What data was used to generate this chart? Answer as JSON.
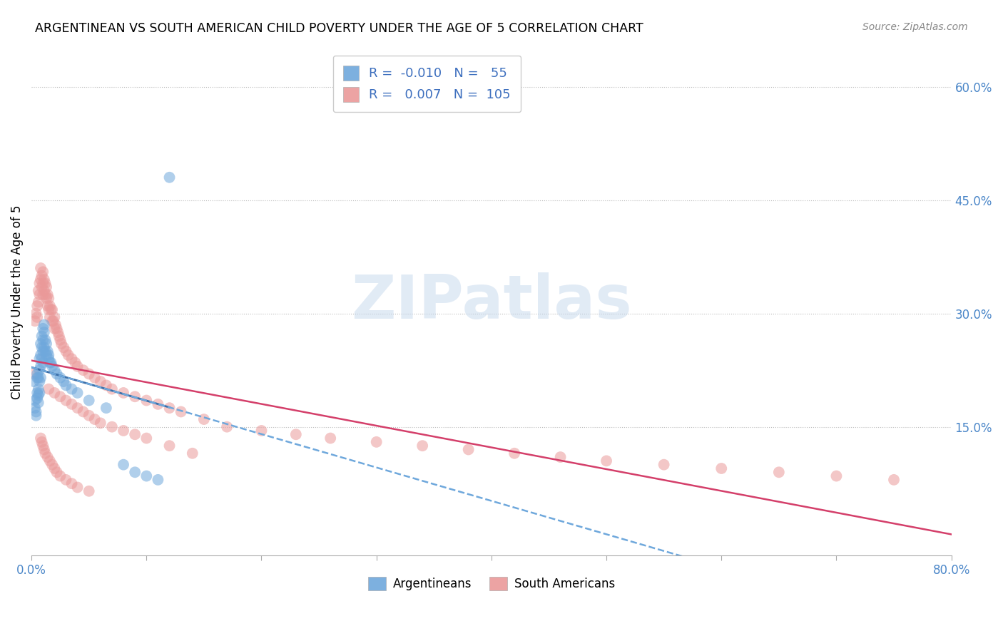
{
  "title": "ARGENTINEAN VS SOUTH AMERICAN CHILD POVERTY UNDER THE AGE OF 5 CORRELATION CHART",
  "source": "Source: ZipAtlas.com",
  "ylabel": "Child Poverty Under the Age of 5",
  "xlim": [
    0.0,
    0.8
  ],
  "ylim": [
    -0.02,
    0.65
  ],
  "yticks_right": [
    0.15,
    0.3,
    0.45,
    0.6
  ],
  "ytick_right_labels": [
    "15.0%",
    "30.0%",
    "45.0%",
    "60.0%"
  ],
  "legend_r1": "-0.010",
  "legend_n1": "55",
  "legend_r2": "0.007",
  "legend_n2": "105",
  "blue_color": "#6fa8dc",
  "pink_color": "#ea9999",
  "watermark": "ZIPatlas",
  "argentinean_x": [
    0.002,
    0.003,
    0.003,
    0.004,
    0.004,
    0.005,
    0.005,
    0.005,
    0.005,
    0.006,
    0.006,
    0.006,
    0.006,
    0.007,
    0.007,
    0.007,
    0.007,
    0.008,
    0.008,
    0.008,
    0.008,
    0.009,
    0.009,
    0.009,
    0.01,
    0.01,
    0.01,
    0.01,
    0.011,
    0.011,
    0.011,
    0.012,
    0.012,
    0.013,
    0.013,
    0.014,
    0.015,
    0.015,
    0.016,
    0.017,
    0.018,
    0.02,
    0.022,
    0.025,
    0.028,
    0.03,
    0.035,
    0.04,
    0.05,
    0.065,
    0.08,
    0.09,
    0.1,
    0.11,
    0.12
  ],
  "argentinean_y": [
    0.21,
    0.185,
    0.175,
    0.17,
    0.165,
    0.22,
    0.215,
    0.195,
    0.188,
    0.215,
    0.2,
    0.192,
    0.182,
    0.24,
    0.225,
    0.21,
    0.195,
    0.26,
    0.245,
    0.23,
    0.215,
    0.27,
    0.255,
    0.24,
    0.28,
    0.265,
    0.25,
    0.235,
    0.285,
    0.275,
    0.255,
    0.265,
    0.25,
    0.26,
    0.245,
    0.25,
    0.245,
    0.24,
    0.235,
    0.235,
    0.23,
    0.225,
    0.22,
    0.215,
    0.21,
    0.205,
    0.2,
    0.195,
    0.185,
    0.175,
    0.1,
    0.09,
    0.085,
    0.08,
    0.48
  ],
  "southamerican_x": [
    0.002,
    0.003,
    0.004,
    0.005,
    0.005,
    0.006,
    0.006,
    0.007,
    0.007,
    0.008,
    0.008,
    0.009,
    0.009,
    0.01,
    0.01,
    0.01,
    0.011,
    0.011,
    0.012,
    0.012,
    0.013,
    0.013,
    0.014,
    0.014,
    0.015,
    0.015,
    0.016,
    0.016,
    0.017,
    0.018,
    0.018,
    0.019,
    0.02,
    0.02,
    0.021,
    0.022,
    0.023,
    0.024,
    0.025,
    0.026,
    0.028,
    0.03,
    0.032,
    0.035,
    0.038,
    0.04,
    0.045,
    0.05,
    0.055,
    0.06,
    0.065,
    0.07,
    0.08,
    0.09,
    0.1,
    0.11,
    0.12,
    0.13,
    0.15,
    0.17,
    0.2,
    0.23,
    0.26,
    0.3,
    0.34,
    0.38,
    0.42,
    0.46,
    0.5,
    0.55,
    0.6,
    0.65,
    0.7,
    0.75,
    0.015,
    0.02,
    0.025,
    0.03,
    0.035,
    0.04,
    0.045,
    0.05,
    0.055,
    0.06,
    0.07,
    0.08,
    0.09,
    0.1,
    0.12,
    0.14,
    0.008,
    0.009,
    0.01,
    0.011,
    0.012,
    0.014,
    0.016,
    0.018,
    0.02,
    0.022,
    0.025,
    0.03,
    0.035,
    0.04,
    0.05
  ],
  "southamerican_y": [
    0.22,
    0.29,
    0.3,
    0.31,
    0.295,
    0.33,
    0.315,
    0.34,
    0.325,
    0.36,
    0.345,
    0.35,
    0.335,
    0.355,
    0.34,
    0.325,
    0.345,
    0.33,
    0.34,
    0.325,
    0.335,
    0.32,
    0.325,
    0.31,
    0.32,
    0.305,
    0.31,
    0.295,
    0.305,
    0.305,
    0.29,
    0.29,
    0.295,
    0.28,
    0.285,
    0.28,
    0.275,
    0.27,
    0.265,
    0.26,
    0.255,
    0.25,
    0.245,
    0.24,
    0.235,
    0.23,
    0.225,
    0.22,
    0.215,
    0.21,
    0.205,
    0.2,
    0.195,
    0.19,
    0.185,
    0.18,
    0.175,
    0.17,
    0.16,
    0.15,
    0.145,
    0.14,
    0.135,
    0.13,
    0.125,
    0.12,
    0.115,
    0.11,
    0.105,
    0.1,
    0.095,
    0.09,
    0.085,
    0.08,
    0.2,
    0.195,
    0.19,
    0.185,
    0.18,
    0.175,
    0.17,
    0.165,
    0.16,
    0.155,
    0.15,
    0.145,
    0.14,
    0.135,
    0.125,
    0.115,
    0.135,
    0.13,
    0.125,
    0.12,
    0.115,
    0.11,
    0.105,
    0.1,
    0.095,
    0.09,
    0.085,
    0.08,
    0.075,
    0.07,
    0.065
  ]
}
